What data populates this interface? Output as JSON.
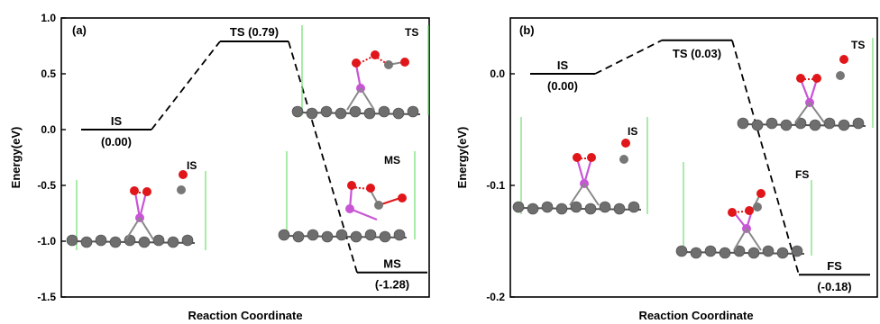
{
  "chart_data": [
    {
      "type": "line",
      "panel_label": "(a)",
      "xlabel": "Reaction Coordinate",
      "ylabel": "Energy(eV)",
      "ylim": [
        -1.5,
        1.0
      ],
      "yticks": [
        1.0,
        0.5,
        0.0,
        -0.5,
        -1.0,
        -1.5
      ],
      "ytick_labels": [
        "1.0",
        "0.5",
        "0.0",
        "-0.5",
        "-1.0",
        "-1.5"
      ],
      "states": [
        {
          "name": "IS",
          "energy": 0.0,
          "value_label": "(0.00)"
        },
        {
          "name": "TS",
          "energy": 0.79,
          "value_label": "(0.79)"
        },
        {
          "name": "MS",
          "energy": -1.28,
          "value_label": "(-1.28)"
        }
      ],
      "ts_label": "TS (0.79)",
      "structure_labels": [
        "IS",
        "TS",
        "MS"
      ]
    },
    {
      "type": "line",
      "panel_label": "(b)",
      "xlabel": "Reaction Coordinate",
      "ylabel": "Energy(eV)",
      "ylim": [
        -0.2,
        0.05
      ],
      "yticks": [
        0.0,
        -0.1,
        -0.2
      ],
      "ytick_labels": [
        "0.0",
        "-0.1",
        "-0.2"
      ],
      "states": [
        {
          "name": "IS",
          "energy": 0.0,
          "value_label": "(0.00)"
        },
        {
          "name": "TS",
          "energy": 0.03,
          "value_label": "(0.03)"
        },
        {
          "name": "FS",
          "energy": -0.18,
          "value_label": "(-0.18)"
        }
      ],
      "ts_label": "TS (0.03)",
      "structure_labels": [
        "IS",
        "TS",
        "FS"
      ]
    }
  ],
  "colors": {
    "carbon": "#6e6e6e",
    "oxygen": "#e0161a",
    "metal": "#c855d6",
    "cell_line": "#7be07b",
    "axis": "#000000"
  }
}
